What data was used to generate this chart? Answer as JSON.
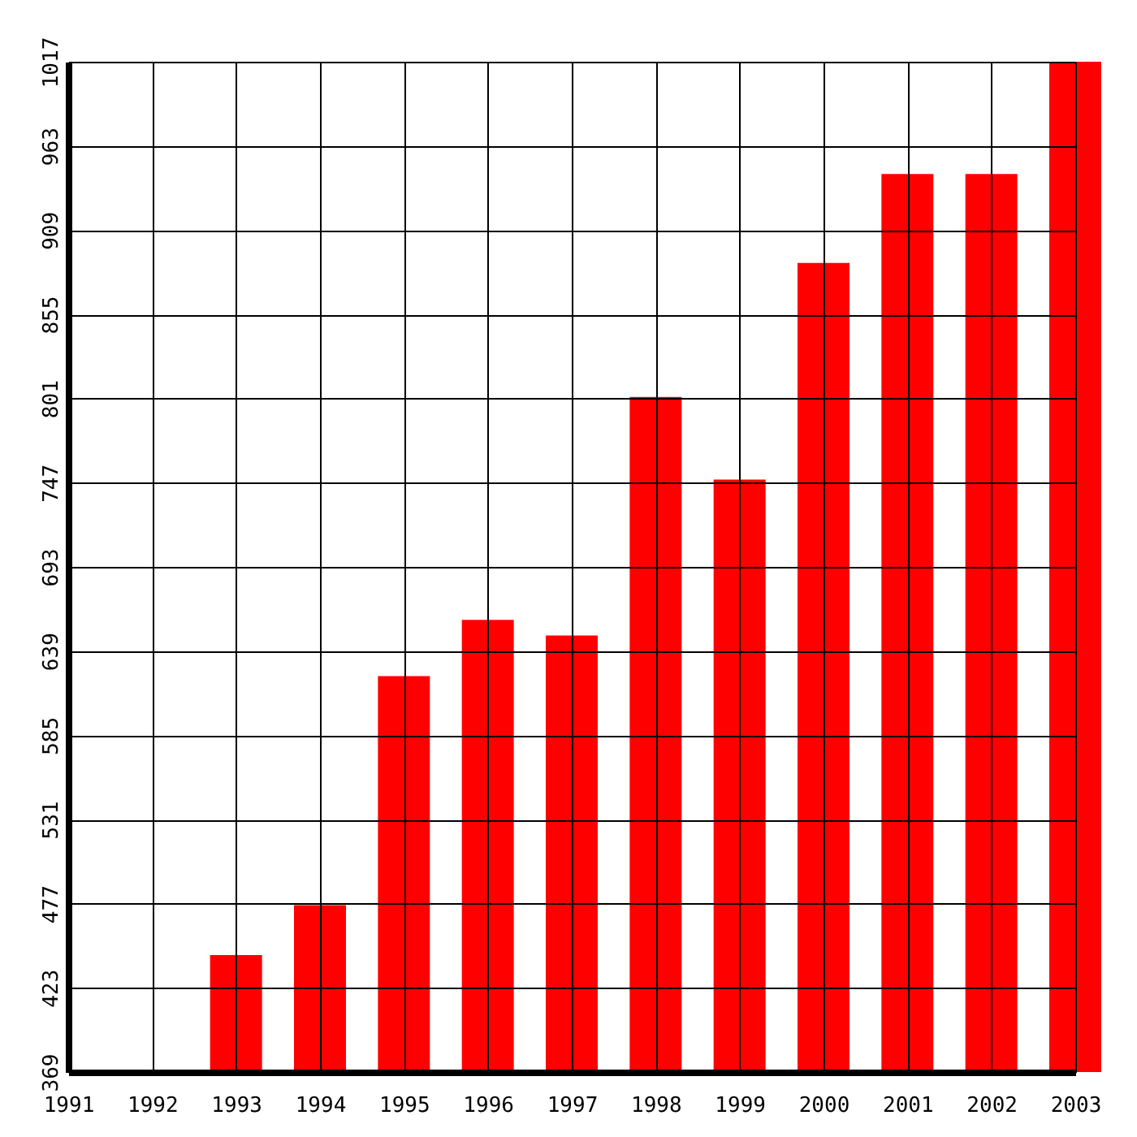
{
  "chart_data": {
    "type": "bar",
    "categories": [
      "1991",
      "1992",
      "1993",
      "1994",
      "1995",
      "1996",
      "1997",
      "1998",
      "1999",
      "2000",
      "2001",
      "2002",
      "2003"
    ],
    "values": [
      null,
      null,
      444,
      476,
      623,
      659,
      649,
      802,
      749,
      888,
      945,
      945,
      1017
    ],
    "color": "#ff0000",
    "ylim": [
      369,
      1017
    ],
    "yticks": [
      369,
      423,
      477,
      531,
      585,
      639,
      693,
      747,
      801,
      855,
      909,
      963,
      1017
    ],
    "grid": true
  }
}
